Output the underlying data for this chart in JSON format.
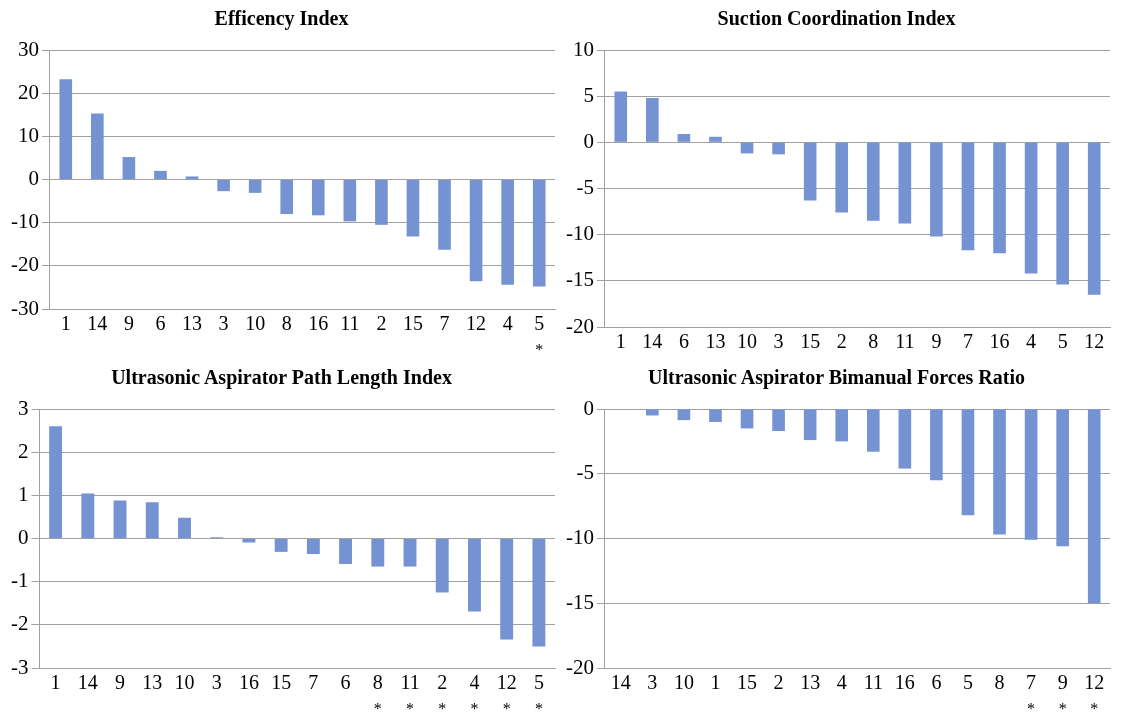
{
  "chart_data": [
    {
      "type": "bar",
      "title": "Efficency Index",
      "categories": [
        "1",
        "14",
        "9",
        "6",
        "13",
        "3",
        "10",
        "8",
        "16",
        "11",
        "2",
        "15",
        "7",
        "12",
        "4",
        "5"
      ],
      "values": [
        23.2,
        15.3,
        5.2,
        2,
        0.7,
        -2.7,
        -3.1,
        -8,
        -8.3,
        -9.7,
        -10.5,
        -13.2,
        -16.3,
        -23.6,
        -24.4,
        -24.8
      ],
      "color": "#7592d2",
      "ylim": [
        -30,
        30
      ],
      "yticks": [
        -30,
        -20,
        -10,
        0,
        10,
        20,
        30
      ],
      "grid": "y",
      "annotations": [
        "*"
      ]
    },
    {
      "type": "bar",
      "title": "Suction Coordination Index",
      "categories": [
        "1",
        "14",
        "6",
        "13",
        "10",
        "3",
        "15",
        "2",
        "8",
        "11",
        "9",
        "7",
        "16",
        "4",
        "5",
        "12"
      ],
      "values": [
        5.5,
        4.8,
        0.9,
        0.6,
        -1.2,
        -1.3,
        -6.3,
        -7.6,
        -8.5,
        -8.8,
        -10.2,
        -11.7,
        -12,
        -14.2,
        -15.4,
        -16.5
      ],
      "color": "#7592d2",
      "ylim": [
        -20,
        10
      ],
      "yticks": [
        -20,
        -15,
        -10,
        -5,
        0,
        5,
        10
      ],
      "grid": "y"
    },
    {
      "type": "bar",
      "title": "Ultrasonic Aspirator Path Length Index",
      "categories": [
        "1",
        "14",
        "9",
        "13",
        "10",
        "3",
        "16",
        "15",
        "7",
        "6",
        "8",
        "11",
        "2",
        "4",
        "12",
        "5"
      ],
      "values": [
        2.6,
        1.04,
        0.88,
        0.84,
        0.48,
        0.03,
        -0.09,
        -0.31,
        -0.36,
        -0.59,
        -0.65,
        -0.65,
        -1.25,
        -1.69,
        -2.34,
        -2.5
      ],
      "color": "#7592d2",
      "ylim": [
        -3,
        3
      ],
      "yticks": [
        -3,
        -2,
        -1,
        0,
        1,
        2,
        3
      ],
      "grid": "y",
      "annotations": [
        "*",
        "*",
        "*",
        "*",
        "*",
        "*"
      ]
    },
    {
      "type": "bar",
      "title": "Ultrasonic Aspirator Bimanual Forces Ratio",
      "categories": [
        "14",
        "3",
        "10",
        "1",
        "15",
        "2",
        "13",
        "4",
        "11",
        "16",
        "6",
        "5",
        "8",
        "7",
        "9",
        "12"
      ],
      "values": [
        null,
        -0.5,
        -0.86,
        -1,
        -1.5,
        -1.7,
        -2.4,
        -2.5,
        -3.3,
        -4.6,
        -5.5,
        -8.2,
        -9.7,
        -10.1,
        -10.6,
        -15
      ],
      "color": "#7592d2",
      "ylim": [
        -20,
        0
      ],
      "yticks": [
        -20,
        -15,
        -10,
        -5,
        0
      ],
      "grid": "y",
      "annotations": [
        "*",
        "*",
        "*"
      ]
    }
  ]
}
